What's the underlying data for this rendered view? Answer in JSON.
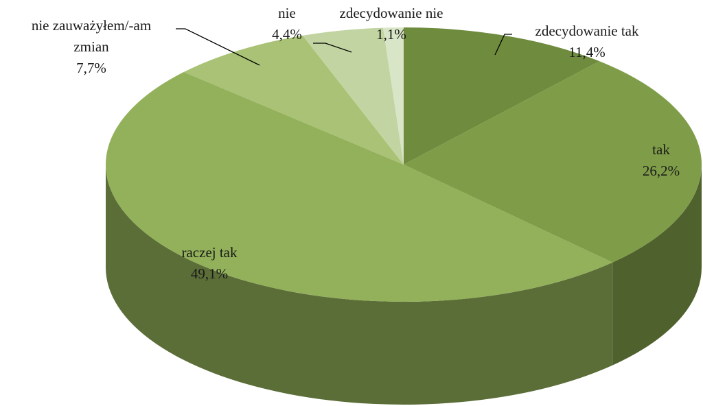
{
  "chart_data": {
    "type": "pie3d",
    "categories": [
      "zdecydowanie tak",
      "tak",
      "raczej tak",
      "nie zauważyłem/-am zmian",
      "nie",
      "zdecydowanie nie"
    ],
    "values": [
      11.4,
      26.2,
      49.1,
      7.7,
      4.4,
      1.1
    ],
    "value_labels": [
      "11,4%",
      "26,2%",
      "49,1%",
      "7,7%",
      "4,4%",
      "1,1%"
    ],
    "colors": [
      "#6f8b3e",
      "#7f9d48",
      "#93b15a",
      "#a9c275",
      "#c2d4a1",
      "#d9e5c7"
    ]
  }
}
